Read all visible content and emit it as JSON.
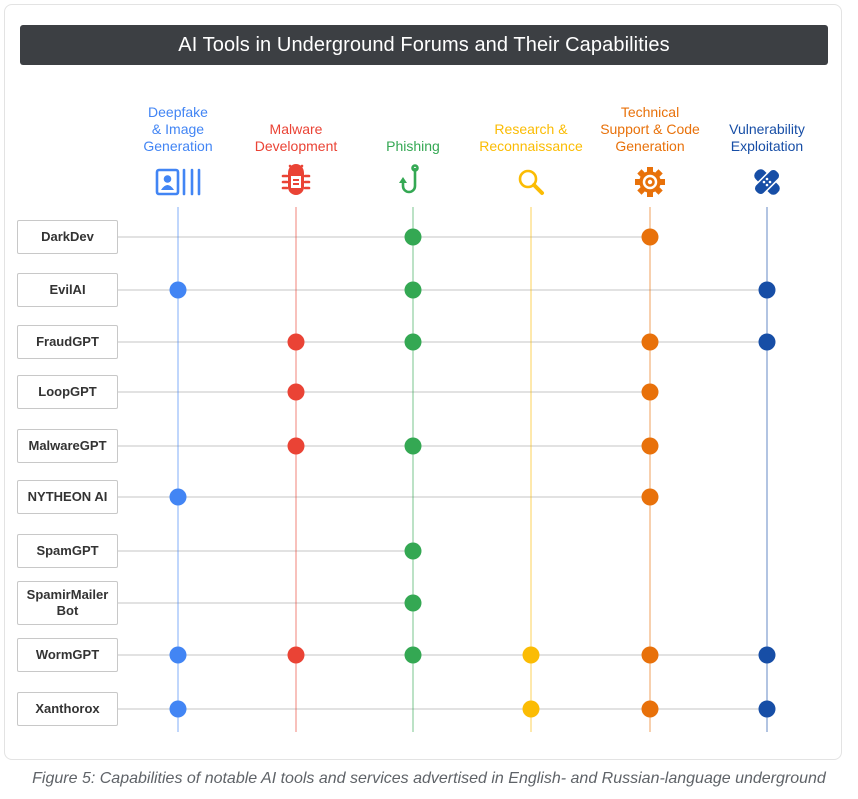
{
  "chart_data": {
    "type": "table",
    "title": "AI Tools in Underground Forums and Their Capabilities",
    "categories": [
      {
        "label": "Deepfake & Image Generation",
        "lines": [
          "Deepfake",
          "& Image",
          "Generation"
        ],
        "color": "#4285f4",
        "icon": "deepfake-portrait-icon"
      },
      {
        "label": "Malware Development",
        "lines": [
          "Malware",
          "Development"
        ],
        "color": "#ea4335",
        "icon": "bug-icon"
      },
      {
        "label": "Phishing",
        "lines": [
          "Phishing"
        ],
        "color": "#34a853",
        "icon": "fishing-hook-icon"
      },
      {
        "label": "Research & Reconnaissance",
        "lines": [
          "Research &",
          "Reconnaissance"
        ],
        "color": "#fbbc04",
        "icon": "magnifier-icon"
      },
      {
        "label": "Technical Support & Code Generation",
        "lines": [
          "Technical",
          "Support & Code",
          "Generation"
        ],
        "color": "#e8710a",
        "icon": "gear-icon"
      },
      {
        "label": "Vulnerability Exploitation",
        "lines": [
          "Vulnerability",
          "Exploitation"
        ],
        "color": "#174ea6",
        "icon": "bandage-icon"
      }
    ],
    "rows": [
      {
        "name": "DarkDev",
        "lines": [
          "DarkDev"
        ],
        "capabilities": [
          0,
          0,
          1,
          0,
          1,
          0
        ]
      },
      {
        "name": "EvilAI",
        "lines": [
          "EvilAI"
        ],
        "capabilities": [
          1,
          0,
          1,
          0,
          0,
          1
        ]
      },
      {
        "name": "FraudGPT",
        "lines": [
          "FraudGPT"
        ],
        "capabilities": [
          0,
          1,
          1,
          0,
          1,
          1
        ]
      },
      {
        "name": "LoopGPT",
        "lines": [
          "LoopGPT"
        ],
        "capabilities": [
          0,
          1,
          0,
          0,
          1,
          0
        ]
      },
      {
        "name": "MalwareGPT",
        "lines": [
          "MalwareGPT"
        ],
        "capabilities": [
          0,
          1,
          1,
          0,
          1,
          0
        ]
      },
      {
        "name": "NYTHEON AI",
        "lines": [
          "NYTHEON AI"
        ],
        "capabilities": [
          1,
          0,
          0,
          0,
          1,
          0
        ]
      },
      {
        "name": "SpamGPT",
        "lines": [
          "SpamGPT"
        ],
        "capabilities": [
          0,
          0,
          1,
          0,
          0,
          0
        ]
      },
      {
        "name": "SpamirMailer Bot",
        "lines": [
          "SpamirMailer",
          "Bot"
        ],
        "capabilities": [
          0,
          0,
          1,
          0,
          0,
          0
        ]
      },
      {
        "name": "WormGPT",
        "lines": [
          "WormGPT"
        ],
        "capabilities": [
          1,
          1,
          1,
          1,
          1,
          1
        ]
      },
      {
        "name": "Xanthorox",
        "lines": [
          "Xanthorox"
        ],
        "capabilities": [
          1,
          0,
          0,
          1,
          1,
          1
        ]
      }
    ],
    "caption": "Figure 5: Capabilities of notable AI tools and services advertised in English- and Russian-language underground"
  }
}
